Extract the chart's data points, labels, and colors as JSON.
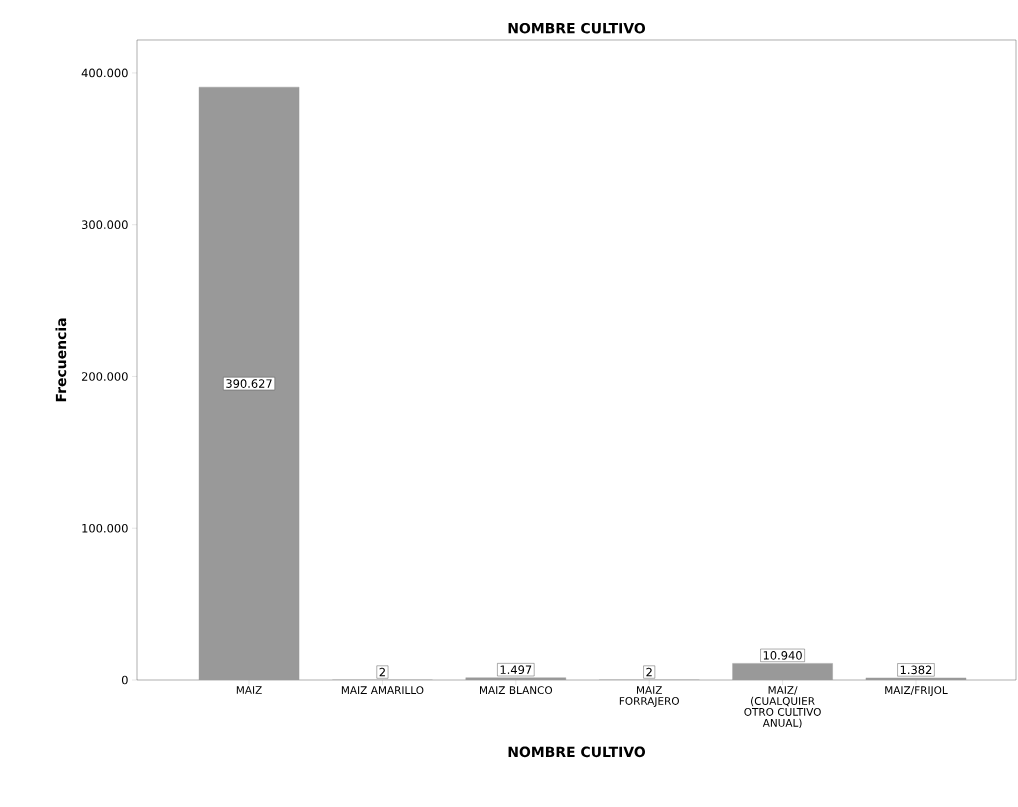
{
  "chart_data": {
    "type": "bar",
    "title": "NOMBRE CULTIVO",
    "xlabel": "NOMBRE CULTIVO",
    "ylabel": "Frecuencia",
    "categories": [
      "MAIZ",
      "MAIZ AMARILLO",
      "MAIZ BLANCO",
      "MAIZ FORRAJERO",
      "MAIZ/ (CUALQUIER OTRO CULTIVO ANUAL)",
      "MAIZ/FRIJOL"
    ],
    "values": [
      390627,
      2,
      1497,
      2,
      10940,
      1382
    ],
    "value_labels": [
      "390.627",
      "2",
      "1.497",
      "2",
      "10.940",
      "1.382"
    ],
    "color": "#999999",
    "ylim": [
      0,
      421700
    ],
    "yticks": [
      {
        "value": 0,
        "label": "0"
      },
      {
        "value": 100000,
        "label": "100.000"
      },
      {
        "value": 200000,
        "label": "200.000"
      },
      {
        "value": 300000,
        "label": "300.000"
      },
      {
        "value": 400000,
        "label": "400.000"
      }
    ],
    "grid": false
  }
}
